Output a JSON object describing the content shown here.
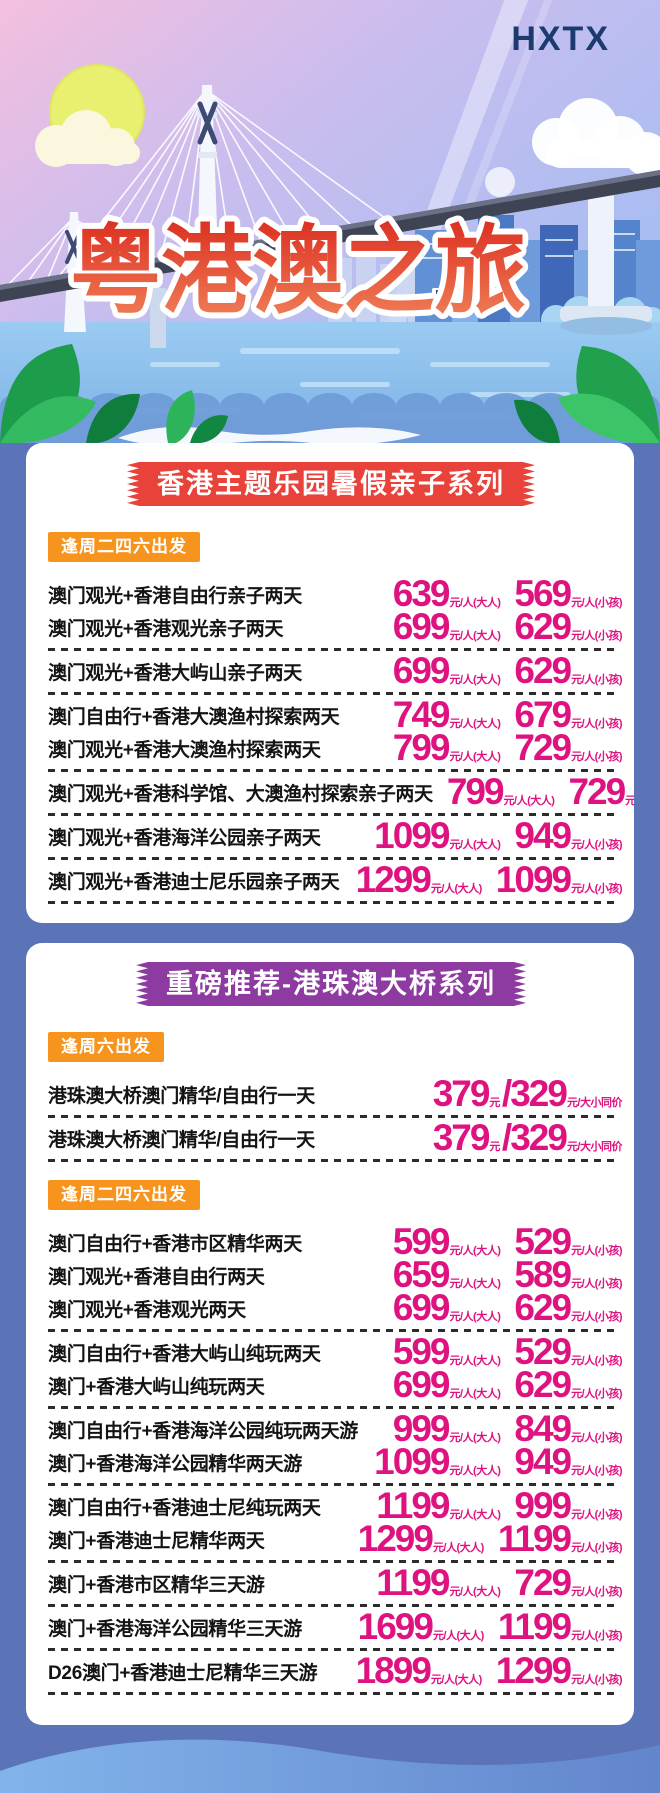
{
  "brand": {
    "logo": "HXTX"
  },
  "hero": {
    "title": "粤港澳之旅"
  },
  "colors": {
    "background_blue": "#5b74b8",
    "banner_red": "#e8423a",
    "banner_purple": "#8d3ba0",
    "badge_orange": "#f6941d",
    "price_magenta": "#df1380",
    "logo_navy": "#1c3a6e",
    "title_red": "#e03224"
  },
  "sections": [
    {
      "banner": "香港主题乐园暑假亲子系列",
      "banner_color": "#e8423a",
      "theme": "red",
      "blocks": [
        {
          "type": "badge",
          "text": "逢周二四六出发"
        },
        {
          "type": "group",
          "rows": [
            {
              "label": "澳门观光+香港自由行亲子两天",
              "prices": [
                {
                  "value": "639",
                  "suffix": "元/人(大人)"
                },
                {
                  "value": "569",
                  "suffix": "元/人(小孩)"
                }
              ]
            },
            {
              "label": "澳门观光+香港观光亲子两天",
              "prices": [
                {
                  "value": "699",
                  "suffix": "元/人(大人)"
                },
                {
                  "value": "629",
                  "suffix": "元/人(小孩)"
                }
              ]
            }
          ]
        },
        {
          "type": "group",
          "rows": [
            {
              "label": "澳门观光+香港大屿山亲子两天",
              "prices": [
                {
                  "value": "699",
                  "suffix": "元/人(大人)"
                },
                {
                  "value": "629",
                  "suffix": "元/人(小孩)"
                }
              ]
            }
          ]
        },
        {
          "type": "group",
          "rows": [
            {
              "label": "澳门自由行+香港大澳渔村探索两天",
              "prices": [
                {
                  "value": "749",
                  "suffix": "元/人(大人)"
                },
                {
                  "value": "679",
                  "suffix": "元/人(小孩)"
                }
              ]
            },
            {
              "label": "澳门观光+香港大澳渔村探索两天",
              "prices": [
                {
                  "value": "799",
                  "suffix": "元/人(大人)"
                },
                {
                  "value": "729",
                  "suffix": "元/人(小孩)"
                }
              ]
            }
          ]
        },
        {
          "type": "group",
          "rows": [
            {
              "label": "澳门观光+香港科学馆、大澳渔村探索亲子两天",
              "prices": [
                {
                  "value": "799",
                  "suffix": "元/人(大人)"
                },
                {
                  "value": "729",
                  "suffix": "元/人(小孩)"
                }
              ]
            }
          ]
        },
        {
          "type": "group",
          "rows": [
            {
              "label": "澳门观光+香港海洋公园亲子两天",
              "prices": [
                {
                  "value": "1099",
                  "suffix": "元/人(大人)"
                },
                {
                  "value": "949",
                  "suffix": "元/人(小孩)"
                }
              ]
            }
          ]
        },
        {
          "type": "group",
          "rows": [
            {
              "label": "澳门观光+香港迪士尼乐园亲子两天",
              "prices": [
                {
                  "value": "1299",
                  "suffix": "元/人(大人)"
                },
                {
                  "value": "1099",
                  "suffix": "元/人(小孩)"
                }
              ]
            }
          ]
        }
      ]
    },
    {
      "banner": "重磅推荐-港珠澳大桥系列",
      "banner_color": "#8d3ba0",
      "theme": "purple",
      "blocks": [
        {
          "type": "badge",
          "text": "逢周六出发"
        },
        {
          "type": "group",
          "rows": [
            {
              "label": "港珠澳大桥澳门精华/自由行一天",
              "prices": [
                {
                  "value": "379",
                  "suffix": "元"
                },
                {
                  "value": "/329",
                  "suffix": "元/大小同价"
                }
              ]
            }
          ]
        },
        {
          "type": "group",
          "rows": [
            {
              "label": "港珠澳大桥澳门精华/自由行一天",
              "prices": [
                {
                  "value": "379",
                  "suffix": "元"
                },
                {
                  "value": "/329",
                  "suffix": "元/大小同价"
                }
              ]
            }
          ]
        },
        {
          "type": "badge",
          "text": "逢周二四六出发"
        },
        {
          "type": "group",
          "rows": [
            {
              "label": "澳门自由行+香港市区精华两天",
              "prices": [
                {
                  "value": "599",
                  "suffix": "元/人(大人)"
                },
                {
                  "value": "529",
                  "suffix": "元/人(小孩)"
                }
              ]
            },
            {
              "label": "澳门观光+香港自由行两天",
              "prices": [
                {
                  "value": "659",
                  "suffix": "元/人(大人)"
                },
                {
                  "value": "589",
                  "suffix": "元/人(小孩)"
                }
              ]
            },
            {
              "label": "澳门观光+香港观光两天",
              "prices": [
                {
                  "value": "699",
                  "suffix": "元/人(大人)"
                },
                {
                  "value": "629",
                  "suffix": "元/人(小孩)"
                }
              ]
            }
          ]
        },
        {
          "type": "group",
          "rows": [
            {
              "label": "澳门自由行+香港大屿山纯玩两天",
              "prices": [
                {
                  "value": "599",
                  "suffix": "元/人(大人)"
                },
                {
                  "value": "529",
                  "suffix": "元/人(小孩)"
                }
              ]
            },
            {
              "label": "澳门+香港大屿山纯玩两天",
              "prices": [
                {
                  "value": "699",
                  "suffix": "元/人(大人)"
                },
                {
                  "value": "629",
                  "suffix": "元/人(小孩)"
                }
              ]
            }
          ]
        },
        {
          "type": "group",
          "rows": [
            {
              "label": "澳门自由行+香港海洋公园纯玩两天游",
              "prices": [
                {
                  "value": "999",
                  "suffix": "元/人(大人)"
                },
                {
                  "value": "849",
                  "suffix": "元/人(小孩)"
                }
              ]
            },
            {
              "label": "澳门+香港海洋公园精华两天游",
              "prices": [
                {
                  "value": "1099",
                  "suffix": "元/人(大人)"
                },
                {
                  "value": "949",
                  "suffix": "元/人(小孩)"
                }
              ]
            }
          ]
        },
        {
          "type": "group",
          "rows": [
            {
              "label": "澳门自由行+香港迪士尼纯玩两天",
              "prices": [
                {
                  "value": "1199",
                  "suffix": "元/人(大人)"
                },
                {
                  "value": "999",
                  "suffix": "元/人(小孩)"
                }
              ]
            },
            {
              "label": "澳门+香港迪士尼精华两天",
              "prices": [
                {
                  "value": "1299",
                  "suffix": "元/人(大人)"
                },
                {
                  "value": "1199",
                  "suffix": "元/人(小孩)"
                }
              ]
            }
          ]
        },
        {
          "type": "group",
          "rows": [
            {
              "label": "澳门+香港市区精华三天游",
              "prices": [
                {
                  "value": "1199",
                  "suffix": "元/人(大人)"
                },
                {
                  "value": "729",
                  "suffix": "元/人(小孩)"
                }
              ]
            }
          ]
        },
        {
          "type": "group",
          "rows": [
            {
              "label": "澳门+香港海洋公园精华三天游",
              "prices": [
                {
                  "value": "1699",
                  "suffix": "元/人(大人)"
                },
                {
                  "value": "1199",
                  "suffix": "元/人(小孩)"
                }
              ]
            }
          ]
        },
        {
          "type": "group",
          "rows": [
            {
              "label": "D26澳门+香港迪士尼精华三天游",
              "prices": [
                {
                  "value": "1899",
                  "suffix": "元/人(大人)"
                },
                {
                  "value": "1299",
                  "suffix": "元/人(小孩)"
                }
              ]
            }
          ]
        }
      ]
    }
  ]
}
